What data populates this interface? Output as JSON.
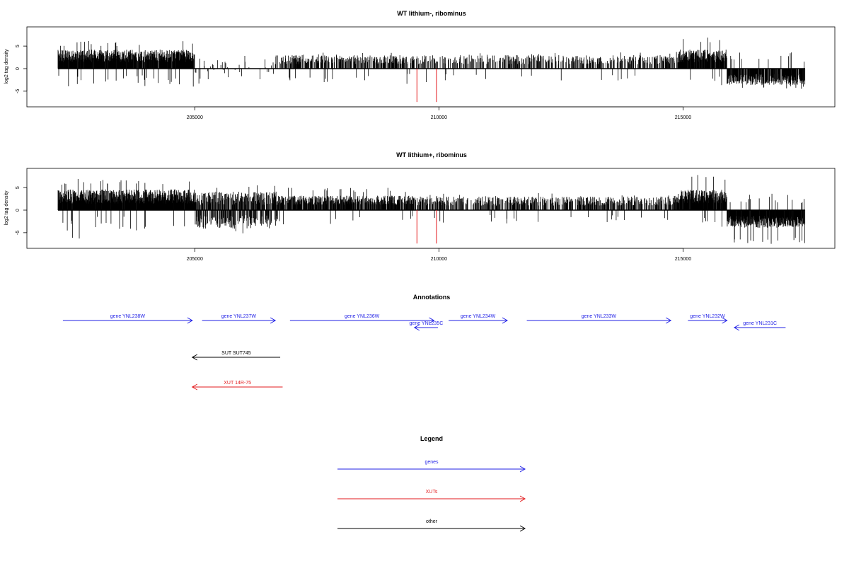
{
  "chart_data": [
    {
      "type": "bar",
      "title": "WT lithium-, ribominus",
      "ylabel": "log2 tag density",
      "xlabel": "",
      "xlim": [
        202200,
        217500
      ],
      "ylim": [
        -8,
        8
      ],
      "x_ticks": [
        205000,
        210000,
        215000
      ],
      "x_tick_labels": [
        "205000",
        "210000",
        "215000"
      ],
      "y_ticks": [
        -5,
        0,
        5
      ],
      "y_tick_labels": [
        "-5",
        "0",
        "5"
      ],
      "baseline": 0,
      "highlight_color": "#e31a1c",
      "bar_color": "#000000",
      "highlighted_positions": [
        209550,
        209950
      ],
      "highlighted_value": -7.4,
      "density_profile": [
        {
          "from": 202200,
          "to": 205000,
          "mean": 2.8,
          "spread": 1.4,
          "fill": 0.95,
          "sign": 1,
          "max": 6.2
        },
        {
          "from": 205000,
          "to": 206600,
          "mean": 1.2,
          "spread": 1.2,
          "fill": 0.12,
          "sign": 0,
          "max": 3.5
        },
        {
          "from": 206600,
          "to": 209500,
          "mean": 2.0,
          "spread": 1.0,
          "fill": 0.45,
          "sign": 1,
          "max": 3.8
        },
        {
          "from": 209500,
          "to": 214900,
          "mean": 2.0,
          "spread": 1.0,
          "fill": 0.35,
          "sign": 1,
          "max": 3.8
        },
        {
          "from": 214900,
          "to": 215900,
          "mean": 2.8,
          "spread": 1.4,
          "fill": 0.9,
          "sign": 1,
          "max": 7.2
        },
        {
          "from": 215900,
          "to": 217500,
          "mean": -2.4,
          "spread": 1.2,
          "fill": 0.85,
          "sign": -1,
          "max": 4.5
        }
      ]
    },
    {
      "type": "bar",
      "title": "WT lithium+, ribominus",
      "ylabel": "log2 tag density",
      "xlabel": "",
      "xlim": [
        202200,
        217500
      ],
      "ylim": [
        -8,
        8
      ],
      "x_ticks": [
        205000,
        210000,
        215000
      ],
      "x_tick_labels": [
        "205000",
        "210000",
        "215000"
      ],
      "y_ticks": [
        -5,
        0,
        5
      ],
      "y_tick_labels": [
        "-5",
        "0",
        "5"
      ],
      "baseline": 0,
      "highlight_color": "#e31a1c",
      "bar_color": "#000000",
      "highlighted_positions": [
        209550,
        209950
      ],
      "highlighted_value": -7.4,
      "density_profile": [
        {
          "from": 202200,
          "to": 205000,
          "mean": 3.0,
          "spread": 1.6,
          "fill": 1.0,
          "sign": 1,
          "max": 7.0
        },
        {
          "from": 205000,
          "to": 206700,
          "mean": 2.6,
          "spread": 1.5,
          "fill": 0.95,
          "sign": 0,
          "max": 5.5
        },
        {
          "from": 206700,
          "to": 209500,
          "mean": 2.2,
          "spread": 1.0,
          "fill": 0.7,
          "sign": 1,
          "max": 5.0
        },
        {
          "from": 209500,
          "to": 214900,
          "mean": 2.0,
          "spread": 1.0,
          "fill": 0.45,
          "sign": 1,
          "max": 3.8
        },
        {
          "from": 214900,
          "to": 215900,
          "mean": 3.0,
          "spread": 1.5,
          "fill": 0.95,
          "sign": 1,
          "max": 7.8
        },
        {
          "from": 215900,
          "to": 217500,
          "mean": -2.6,
          "spread": 1.3,
          "fill": 0.95,
          "sign": -1,
          "max": 7.5
        }
      ]
    }
  ],
  "annotations": {
    "title": "Annotations",
    "features": [
      {
        "label": "gene YNL238W",
        "start": 202300,
        "end": 204950,
        "strand": "+",
        "row": 0,
        "type": "gene"
      },
      {
        "label": "gene YNL237W",
        "start": 205150,
        "end": 206650,
        "strand": "+",
        "row": 0,
        "type": "gene"
      },
      {
        "label": "gene YNL236W",
        "start": 206950,
        "end": 209900,
        "strand": "+",
        "row": 0,
        "type": "gene"
      },
      {
        "label": "gene YNL235C",
        "start": 209500,
        "end": 209980,
        "strand": "-",
        "row": 1,
        "type": "gene"
      },
      {
        "label": "gene YNL234W",
        "start": 210200,
        "end": 211400,
        "strand": "+",
        "row": 0,
        "type": "gene"
      },
      {
        "label": "gene YNL233W",
        "start": 211800,
        "end": 214750,
        "strand": "+",
        "row": 0,
        "type": "gene"
      },
      {
        "label": "gene YNL232W",
        "start": 215100,
        "end": 215900,
        "strand": "+",
        "row": 0,
        "type": "gene"
      },
      {
        "label": "gene YNL231C",
        "start": 216050,
        "end": 217100,
        "strand": "-",
        "row": 1,
        "type": "gene"
      },
      {
        "label": "SUT SUT745",
        "start": 204950,
        "end": 206750,
        "strand": "-",
        "row": 2,
        "type": "other"
      },
      {
        "label": "XUT 14R-75",
        "start": 204950,
        "end": 206800,
        "strand": "-",
        "row": 3,
        "type": "xut"
      }
    ]
  },
  "legend": {
    "title": "Legend",
    "entries": [
      {
        "label": "genes",
        "type": "gene"
      },
      {
        "label": "XUTs",
        "type": "xut"
      },
      {
        "label": "other",
        "type": "other"
      }
    ]
  },
  "colors": {
    "gene": "#1f1fe6",
    "xut": "#e31a1c",
    "other": "#000000"
  }
}
